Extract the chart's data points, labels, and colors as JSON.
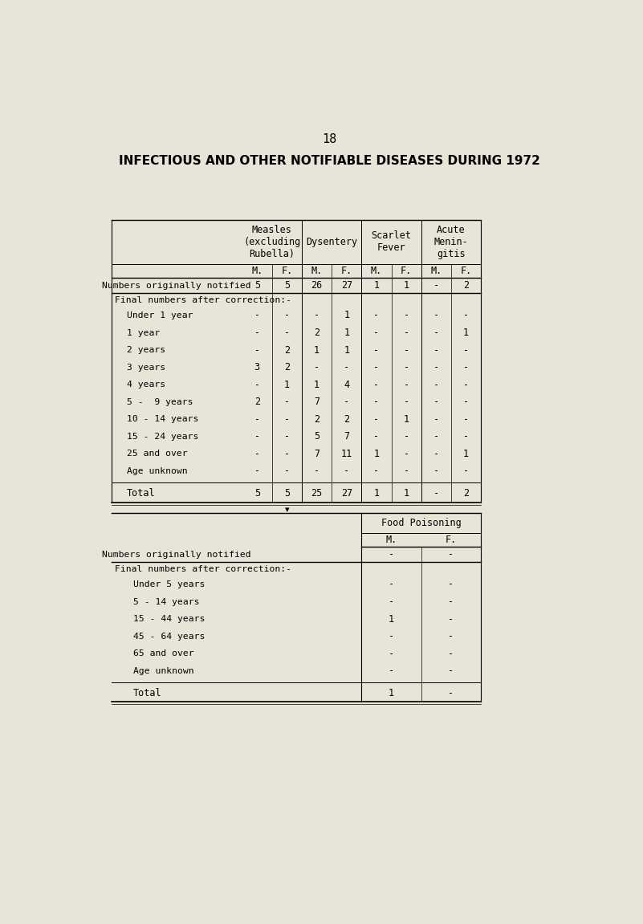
{
  "title": "INFECTIOUS AND OTHER NOTIFIABLE DISEASES DURING 1972",
  "page_number": "18",
  "background_color": "#e8e4d8",
  "table1": {
    "col_groups": [
      {
        "label": "Measles\n(excluding\nRubella)",
        "subcols": [
          "M.",
          "F."
        ]
      },
      {
        "label": "Dysentery",
        "subcols": [
          "M.",
          "F."
        ]
      },
      {
        "label": "Scarlet\nFever",
        "subcols": [
          "M.",
          "F."
        ]
      },
      {
        "label": "Acute\nMenin-\ngitis",
        "subcols": [
          "M.",
          "F."
        ]
      }
    ],
    "row_originally_notified": [
      "5",
      "5",
      "26",
      "27",
      "1",
      "1",
      "-",
      "2"
    ],
    "age_rows": [
      {
        "label": "Under 1 year",
        "values": [
          "-",
          "-",
          "-",
          "1",
          "-",
          "-",
          "-",
          "-"
        ]
      },
      {
        "label": "1 year",
        "values": [
          "-",
          "-",
          "2",
          "1",
          "-",
          "-",
          "-",
          "1"
        ]
      },
      {
        "label": "2 years",
        "values": [
          "-",
          "2",
          "1",
          "1",
          "-",
          "-",
          "-",
          "-"
        ]
      },
      {
        "label": "3 years",
        "values": [
          "3",
          "2",
          "-",
          "-",
          "-",
          "-",
          "-",
          "-"
        ]
      },
      {
        "label": "4 years",
        "values": [
          "-",
          "1",
          "1",
          "4",
          "-",
          "-",
          "-",
          "-"
        ]
      },
      {
        "label": "5 -  9 years",
        "values": [
          "2",
          "-",
          "7",
          "-",
          "-",
          "-",
          "-",
          "-"
        ]
      },
      {
        "label": "10 - 14 years",
        "values": [
          "-",
          "-",
          "2",
          "2",
          "-",
          "1",
          "-",
          "-"
        ]
      },
      {
        "label": "15 - 24 years",
        "values": [
          "-",
          "-",
          "5",
          "7",
          "-",
          "-",
          "-",
          "-"
        ]
      },
      {
        "label": "25 and over",
        "values": [
          "-",
          "-",
          "7",
          "11",
          "1",
          "-",
          "-",
          "1"
        ]
      },
      {
        "label": "Age unknown",
        "values": [
          "-",
          "-",
          "-",
          "-",
          "-",
          "-",
          "-",
          "-"
        ]
      }
    ],
    "total_row": [
      "5",
      "5",
      "25",
      "27",
      "1",
      "1",
      "-",
      "2"
    ]
  },
  "table2": {
    "col_groups": [
      {
        "label": "Food Poisoning",
        "subcols": [
          "M.",
          "F."
        ]
      }
    ],
    "row_originally_notified": [
      "-",
      "-"
    ],
    "age_rows": [
      {
        "label": "Under 5 years",
        "values": [
          "-",
          "-"
        ]
      },
      {
        "label": "5 - 14 years",
        "values": [
          "-",
          "-"
        ]
      },
      {
        "label": "15 - 44 years",
        "values": [
          "1",
          "-"
        ]
      },
      {
        "label": "45 - 64 years",
        "values": [
          "-",
          "-"
        ]
      },
      {
        "label": "65 and over",
        "values": [
          "-",
          "-"
        ]
      },
      {
        "label": "Age unknown",
        "values": [
          "-",
          "-"
        ]
      }
    ],
    "total_row": [
      "1",
      "-"
    ]
  }
}
